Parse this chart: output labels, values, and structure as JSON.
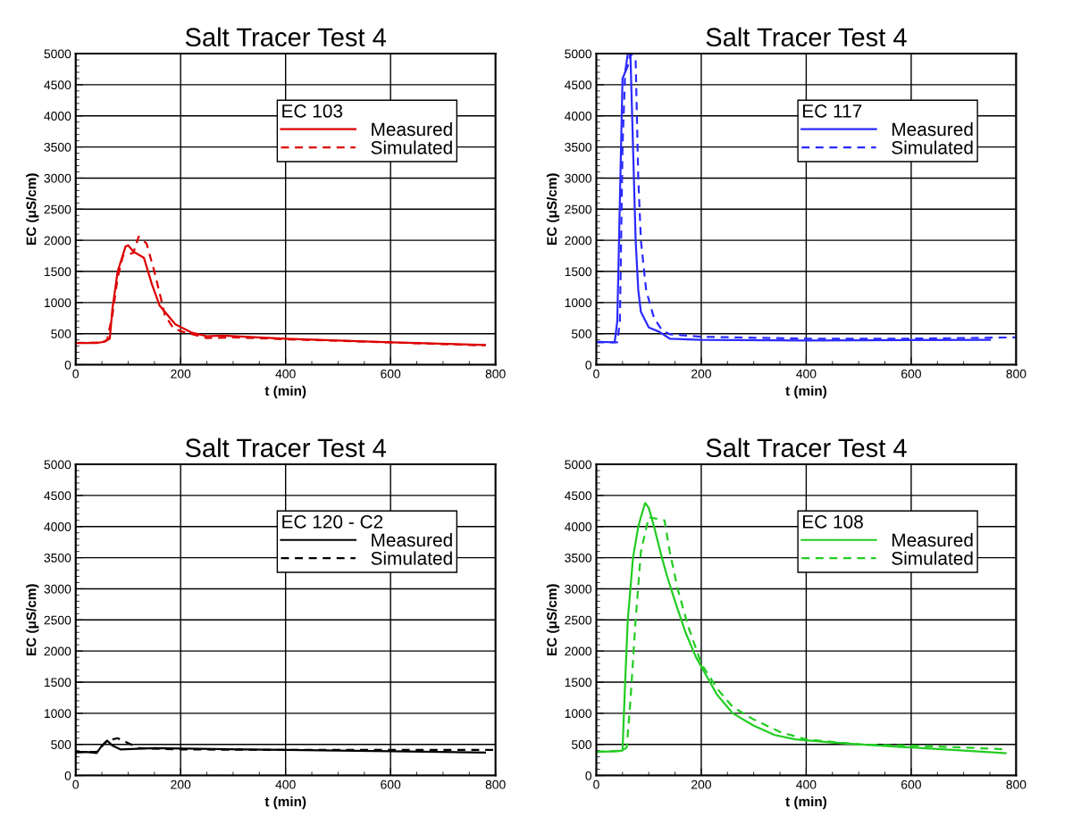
{
  "chart_data": [
    {
      "type": "line",
      "title": "Salt Tracer Test 4",
      "xlabel": "t (min)",
      "ylabel": "EC (μS/cm)",
      "legend_title": "EC 103",
      "legend": "top right",
      "grid": true,
      "xlim": [
        0,
        800
      ],
      "xticks": [
        0,
        200,
        400,
        600,
        800
      ],
      "ylim": [
        0,
        5000
      ],
      "yticks": [
        0,
        500,
        1000,
        1500,
        2000,
        2500,
        3000,
        3500,
        4000,
        4500,
        5000
      ],
      "series": [
        {
          "name": "Measured",
          "color": "#dd0000",
          "line_style": "solid",
          "x": [
            0,
            40,
            55,
            65,
            70,
            80,
            95,
            100,
            110,
            130,
            145,
            160,
            190,
            220,
            250,
            280,
            400,
            600,
            780
          ],
          "values": [
            350,
            350,
            370,
            420,
            900,
            1500,
            1900,
            1920,
            1820,
            1720,
            1300,
            950,
            650,
            520,
            460,
            470,
            420,
            360,
            320
          ]
        },
        {
          "name": "Simulated",
          "color": "#dd0000",
          "line_style": "dashed",
          "x": [
            0,
            50,
            60,
            70,
            80,
            90,
            110,
            120,
            135,
            150,
            170,
            185,
            200,
            250,
            300,
            400,
            600,
            780
          ],
          "values": [
            350,
            360,
            400,
            800,
            1400,
            1750,
            1800,
            2060,
            1950,
            1500,
            800,
            600,
            540,
            430,
            440,
            410,
            360,
            310
          ]
        }
      ]
    },
    {
      "type": "line",
      "title": "Salt Tracer Test 4",
      "xlabel": "t (min)",
      "ylabel": "EC (μS/cm)",
      "legend_title": "EC 117",
      "legend": "top right",
      "grid": true,
      "xlim": [
        0,
        800
      ],
      "xticks": [
        0,
        200,
        400,
        600,
        800
      ],
      "ylim": [
        0,
        5000
      ],
      "yticks": [
        0,
        500,
        1000,
        1500,
        2000,
        2500,
        3000,
        3500,
        4000,
        4500,
        5000
      ],
      "series": [
        {
          "name": "Measured",
          "color": "#2a2aff",
          "line_style": "solid",
          "x": [
            0,
            35,
            40,
            50,
            55,
            60,
            65,
            70,
            75,
            80,
            85,
            100,
            120,
            140,
            200,
            400,
            750
          ],
          "values": [
            370,
            360,
            700,
            4600,
            4700,
            5000,
            5000,
            3500,
            2000,
            1200,
            850,
            600,
            530,
            420,
            400,
            390,
            400
          ]
        },
        {
          "name": "Simulated",
          "color": "#2a2aff",
          "line_style": "dashed",
          "x": [
            0,
            40,
            45,
            50,
            55,
            60,
            65,
            75,
            80,
            85,
            95,
            110,
            125,
            140,
            200,
            400,
            600,
            800
          ],
          "values": [
            360,
            360,
            700,
            3500,
            4700,
            4800,
            5000,
            4900,
            3000,
            2000,
            1200,
            750,
            560,
            490,
            450,
            420,
            420,
            440
          ]
        }
      ]
    },
    {
      "type": "line",
      "title": "Salt Tracer Test 4",
      "xlabel": "t (min)",
      "ylabel": "EC (μS/cm)",
      "legend_title": "EC 120 - C2",
      "legend": "top right",
      "grid": true,
      "xlim": [
        0,
        800
      ],
      "xticks": [
        0,
        200,
        400,
        600,
        800
      ],
      "ylim": [
        0,
        5000
      ],
      "yticks": [
        0,
        500,
        1000,
        1500,
        2000,
        2500,
        3000,
        3500,
        4000,
        4500,
        5000
      ],
      "series": [
        {
          "name": "Measured",
          "color": "#000000",
          "line_style": "solid",
          "x": [
            0,
            20,
            40,
            50,
            60,
            70,
            85,
            150,
            400,
            600,
            780
          ],
          "values": [
            370,
            380,
            360,
            480,
            560,
            480,
            420,
            440,
            410,
            390,
            370
          ]
        },
        {
          "name": "Simulated",
          "color": "#000000",
          "line_style": "dashed",
          "x": [
            0,
            40,
            60,
            80,
            100,
            120,
            200,
            400,
            600,
            800
          ],
          "values": [
            380,
            380,
            560,
            600,
            520,
            440,
            420,
            410,
            410,
            410
          ]
        }
      ]
    },
    {
      "type": "line",
      "title": "Salt Tracer Test 4",
      "xlabel": "t (min)",
      "ylabel": "EC (μS/cm)",
      "legend_title": "EC 108",
      "legend": "top right",
      "grid": true,
      "xlim": [
        0,
        800
      ],
      "xticks": [
        0,
        200,
        400,
        600,
        800
      ],
      "ylim": [
        0,
        5000
      ],
      "yticks": [
        0,
        500,
        1000,
        1500,
        2000,
        2500,
        3000,
        3500,
        4000,
        4500,
        5000
      ],
      "series": [
        {
          "name": "Measured",
          "color": "#22cc22",
          "line_style": "solid",
          "x": [
            0,
            40,
            50,
            55,
            60,
            70,
            80,
            85,
            93,
            100,
            110,
            125,
            135,
            150,
            170,
            190,
            210,
            230,
            260,
            300,
            340,
            380,
            450,
            500,
            600,
            700,
            780
          ],
          "values": [
            380,
            390,
            400,
            1500,
            2500,
            3500,
            4000,
            4150,
            4380,
            4300,
            4000,
            3500,
            3200,
            2800,
            2300,
            1900,
            1600,
            1300,
            1000,
            800,
            650,
            580,
            530,
            500,
            450,
            400,
            360
          ]
        },
        {
          "name": "Simulated",
          "color": "#22cc22",
          "line_style": "dashed",
          "x": [
            0,
            50,
            58,
            65,
            75,
            85,
            100,
            130,
            140,
            155,
            175,
            200,
            230,
            260,
            300,
            350,
            400,
            500,
            600,
            700,
            780
          ],
          "values": [
            380,
            400,
            450,
            1200,
            2500,
            3600,
            4150,
            4100,
            3600,
            3000,
            2400,
            1800,
            1400,
            1100,
            900,
            700,
            580,
            500,
            480,
            450,
            420
          ]
        }
      ]
    }
  ]
}
